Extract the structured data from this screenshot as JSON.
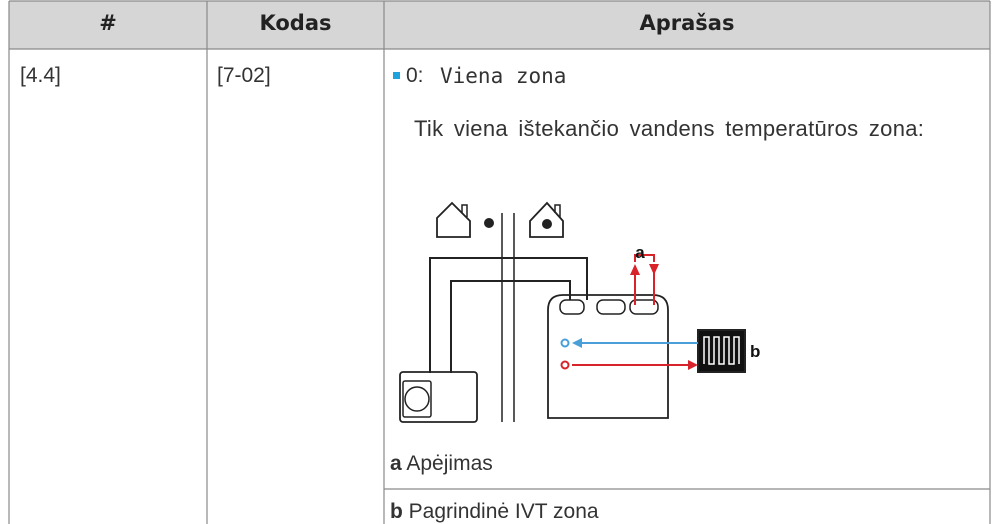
{
  "header": {
    "columns": [
      "#",
      "Kodas",
      "Aprašas"
    ]
  },
  "table": {
    "rows": [
      {
        "number": "[4.4]",
        "code": "[7-02]",
        "option": {
          "prefix": "0:",
          "value": "Viena zona"
        },
        "description": "Tik viena ištekančio vandens temperatūros zona:",
        "diagram": {
          "labels": [
            "a",
            "b"
          ]
        },
        "legend": [
          {
            "key": "a",
            "text": "Apėjimas"
          },
          {
            "key": "b",
            "text": "Pagrindinė IVT zona"
          }
        ]
      }
    ]
  }
}
